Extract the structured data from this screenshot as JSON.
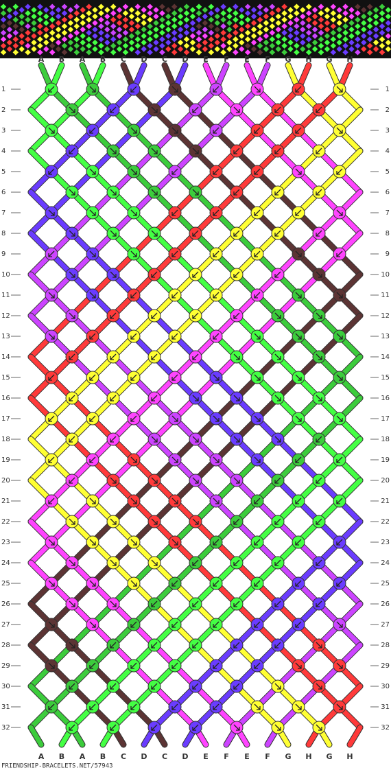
{
  "top_labels": [
    "A",
    "B",
    "A",
    "B",
    "C",
    "D",
    "C",
    "D",
    "E",
    "F",
    "E",
    "F",
    "G",
    "H",
    "G",
    "H"
  ],
  "bottom_labels": [
    "A",
    "B",
    "A",
    "B",
    "C",
    "D",
    "C",
    "D",
    "E",
    "F",
    "E",
    "F",
    "G",
    "H",
    "G",
    "H"
  ],
  "string_colors": [
    "#3ccc3c",
    "#44ff44",
    "#3ccc3c",
    "#44ff44",
    "#5c3434",
    "#6a3cff",
    "#5c3434",
    "#6a3cff",
    "#ff44ff",
    "#cc44ff",
    "#ff44ff",
    "#cc44ff",
    "#ffff33",
    "#ff3a3a",
    "#ffff33",
    "#ff3a3a"
  ],
  "row_labels": [
    "1",
    "2",
    "3",
    "4",
    "5",
    "6",
    "7",
    "8",
    "9",
    "10",
    "11",
    "12",
    "13",
    "14",
    "15",
    "16",
    "17",
    "18",
    "19",
    "20",
    "21",
    "22",
    "23",
    "24",
    "25",
    "26",
    "27",
    "28",
    "29",
    "30",
    "31",
    "32"
  ],
  "knots": [
    "bfbfbfbf",
    "fbfbfbb",
    "fbffbbbf",
    "bfffbbb",
    "bffbbbfb",
    "ffffbbb",
    "fffbbbbf",
    "fffbbbb",
    "bffbbbfb",
    "ffbbbbf",
    "ffbbbbff",
    "fbbbbff",
    "fbbbbfff",
    "bbbbfff",
    "bbbbffff",
    "bbbffff",
    "bbbfffff",
    "bbffffb",
    "bbffffbb",
    "bffffbb",
    "bffffbbb",
    "ffffbbb",
    "ffffbbbb",
    "fffbbbb",
    "fffbbbbb",
    "ffbbbbb",
    "ffbbbbbf",
    "fbbbbbf",
    "fbbbbbff",
    "bbbbbff",
    "bbbbbfff",
    "bbbbfff"
  ],
  "footer": "FRIENDSHIP-BRACELETS.NET/57943"
}
